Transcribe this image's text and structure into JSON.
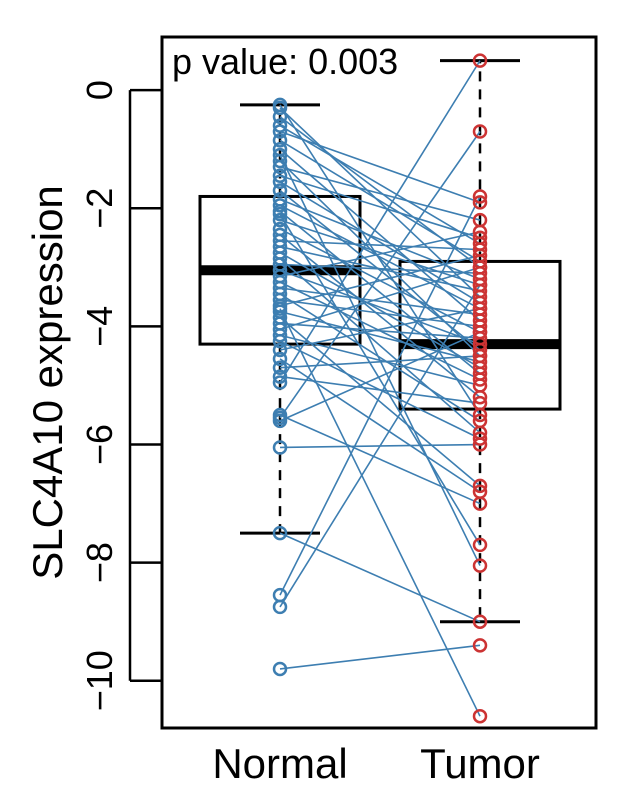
{
  "chart_data": {
    "type": "box",
    "title": "",
    "annotation": "p value: 0.003",
    "xlabel": "",
    "ylabel": "SLC4A10 expression",
    "categories": [
      "Normal",
      "Tumor"
    ],
    "ylim": [
      -10.8,
      0.9
    ],
    "yticks": [
      0,
      -2,
      -4,
      -6,
      -8,
      -10
    ],
    "ytick_labels": [
      "0",
      "−2",
      "−4",
      "−6",
      "−8",
      "−10"
    ],
    "grid": false,
    "boxes": [
      {
        "name": "Normal",
        "whisker_low": -7.5,
        "q1": -4.3,
        "median": -3.05,
        "q3": -1.8,
        "whisker_high": -0.25
      },
      {
        "name": "Tumor",
        "whisker_low": -9.0,
        "q1": -5.4,
        "median": -4.3,
        "q3": -2.9,
        "whisker_high": 0.5
      }
    ],
    "colors": {
      "normal": "#3d7eb1",
      "tumor": "#cc3333",
      "line": "#3d7eb1",
      "box": "#000000"
    },
    "pairs": [
      [
        -0.25,
        -5.5
      ],
      [
        -0.3,
        -3.5
      ],
      [
        -0.45,
        -3.0
      ],
      [
        -0.6,
        -2.6
      ],
      [
        -0.7,
        -1.9
      ],
      [
        -0.85,
        -2.9
      ],
      [
        -1.0,
        -3.9
      ],
      [
        -1.2,
        -4.5
      ],
      [
        -1.3,
        -2.2
      ],
      [
        -1.45,
        -2.5
      ],
      [
        -1.55,
        -3.6
      ],
      [
        -1.7,
        -4.4
      ],
      [
        -1.85,
        -3.2
      ],
      [
        -1.95,
        -3.7
      ],
      [
        -2.05,
        -4.8
      ],
      [
        -2.2,
        -3.3
      ],
      [
        -2.35,
        -4.1
      ],
      [
        -2.45,
        -5.2
      ],
      [
        -2.55,
        -2.7
      ],
      [
        -2.65,
        -3.4
      ],
      [
        -2.75,
        -4.7
      ],
      [
        -2.85,
        -5.8
      ],
      [
        -2.95,
        -3.1
      ],
      [
        -3.05,
        -4.3
      ],
      [
        -3.15,
        -2.4
      ],
      [
        -3.25,
        -4.9
      ],
      [
        -3.35,
        -3.8
      ],
      [
        -3.45,
        -5.6
      ],
      [
        -3.55,
        -4.0
      ],
      [
        -3.65,
        -2.8
      ],
      [
        -3.75,
        -4.6
      ],
      [
        -3.85,
        -6.7
      ],
      [
        -3.95,
        -4.2
      ],
      [
        -4.05,
        -3.0
      ],
      [
        -4.15,
        -5.0
      ],
      [
        -4.25,
        -5.9
      ],
      [
        -4.4,
        -3.7
      ],
      [
        -4.55,
        -6.8
      ],
      [
        -4.7,
        -4.5
      ],
      [
        -4.85,
        -5.3
      ],
      [
        -5.5,
        -7.0
      ],
      [
        -5.6,
        -4.1
      ],
      [
        -6.05,
        -6.0
      ],
      [
        -7.5,
        -9.0
      ],
      [
        -8.55,
        -1.8
      ],
      [
        -8.75,
        -3.3
      ],
      [
        -9.8,
        -9.4
      ],
      [
        -2.1,
        -7.7
      ],
      [
        -1.1,
        -8.05
      ],
      [
        -3.7,
        -10.6
      ],
      [
        -4.95,
        0.5
      ],
      [
        -5.55,
        -0.7
      ]
    ]
  }
}
